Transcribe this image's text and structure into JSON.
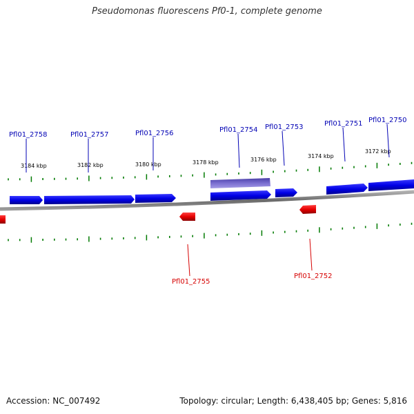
{
  "title": "Pseudomonas fluorescens Pf0-1, complete genome",
  "footer": {
    "accession": "Accession: NC_007492",
    "summary": "Topology: circular; Length: 6,438,405 bp; Genes: 5,816"
  },
  "colors": {
    "forward_gene": "#0000e6",
    "reverse_gene": "#e60000",
    "highlight_gene": "#7a6fd0",
    "ticks": "#007a00",
    "backbone": "#808080"
  },
  "kbp_labels": [
    "3184 kbp",
    "3182 kbp",
    "3180 kbp",
    "3178 kbp",
    "3176 kbp",
    "3174 kbp",
    "3172 kbp"
  ],
  "forward_genes": [
    "Pfl01_2758",
    "Pfl01_2757",
    "Pfl01_2756",
    "Pfl01_2754",
    "Pfl01_2753",
    "Pfl01_2751",
    "Pfl01_2750"
  ],
  "reverse_genes": [
    "Pfl01_2755",
    "Pfl01_2752"
  ]
}
